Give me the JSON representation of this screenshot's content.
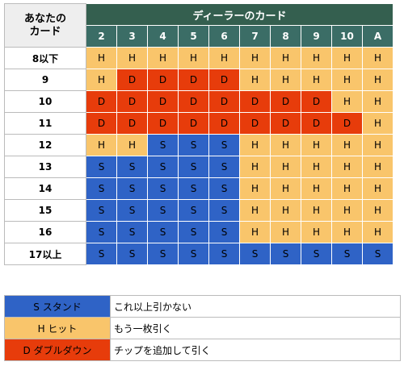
{
  "table": {
    "corner_label_line1": "あなたの",
    "corner_label_line2": "カード",
    "dealer_header": "ディーラーのカード",
    "dealer_cards": [
      "2",
      "3",
      "4",
      "5",
      "6",
      "7",
      "8",
      "9",
      "10",
      "A"
    ],
    "rows": [
      {
        "label": "8以下",
        "actions": [
          "H",
          "H",
          "H",
          "H",
          "H",
          "H",
          "H",
          "H",
          "H",
          "H"
        ]
      },
      {
        "label": "9",
        "actions": [
          "H",
          "D",
          "D",
          "D",
          "D",
          "H",
          "H",
          "H",
          "H",
          "H"
        ]
      },
      {
        "label": "10",
        "actions": [
          "D",
          "D",
          "D",
          "D",
          "D",
          "D",
          "D",
          "D",
          "H",
          "H"
        ]
      },
      {
        "label": "11",
        "actions": [
          "D",
          "D",
          "D",
          "D",
          "D",
          "D",
          "D",
          "D",
          "D",
          "H"
        ]
      },
      {
        "label": "12",
        "actions": [
          "H",
          "H",
          "S",
          "S",
          "S",
          "H",
          "H",
          "H",
          "H",
          "H"
        ]
      },
      {
        "label": "13",
        "actions": [
          "S",
          "S",
          "S",
          "S",
          "S",
          "H",
          "H",
          "H",
          "H",
          "H"
        ]
      },
      {
        "label": "14",
        "actions": [
          "S",
          "S",
          "S",
          "S",
          "S",
          "H",
          "H",
          "H",
          "H",
          "H"
        ]
      },
      {
        "label": "15",
        "actions": [
          "S",
          "S",
          "S",
          "S",
          "S",
          "H",
          "H",
          "H",
          "H",
          "H"
        ]
      },
      {
        "label": "16",
        "actions": [
          "S",
          "S",
          "S",
          "S",
          "S",
          "H",
          "H",
          "H",
          "H",
          "H"
        ]
      },
      {
        "label": "17以上",
        "actions": [
          "S",
          "S",
          "S",
          "S",
          "S",
          "S",
          "S",
          "S",
          "S",
          "S"
        ]
      }
    ]
  },
  "legend": [
    {
      "key": "S スタンド",
      "action": "S",
      "desc": "これ以上引かない"
    },
    {
      "key": "H ヒット",
      "action": "H",
      "desc": "もう一枚引く"
    },
    {
      "key": "D ダブルダウン",
      "action": "D",
      "desc": "チップを追加して引く"
    }
  ],
  "colors": {
    "hit": "#f9c56b",
    "double": "#e73c0b",
    "stand": "#2f63c6",
    "header": "#345f4f"
  }
}
